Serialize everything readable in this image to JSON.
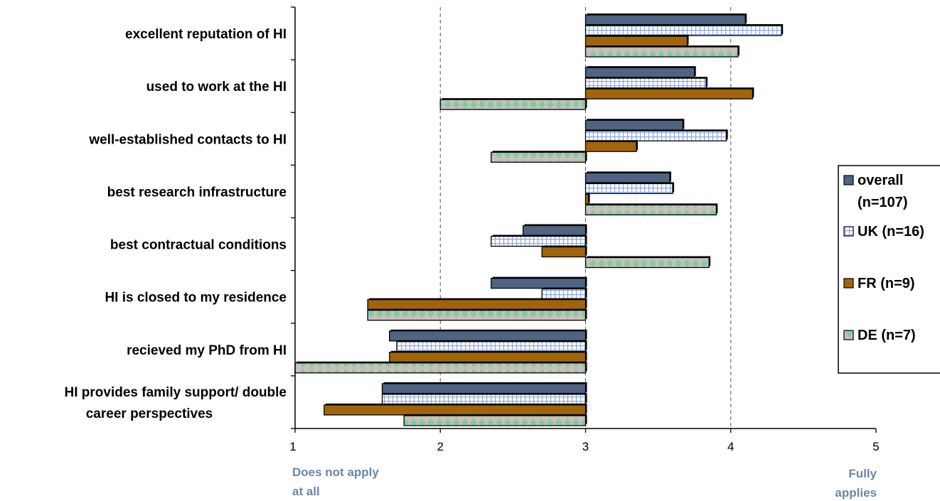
{
  "chart_data": {
    "type": "bar",
    "orientation": "horizontal",
    "categories": [
      "excellent reputation of HI",
      "used to work at the HI",
      "well-established contacts to HI",
      "best research infrastructure",
      "best contractual conditions",
      "HI is closed to my residence",
      "recieved my PhD from HI",
      "HI provides family support/ double career perspectives"
    ],
    "category_lines": [
      [
        "excellent reputation of HI"
      ],
      [
        "used to work at the HI"
      ],
      [
        "well-established contacts to HI"
      ],
      [
        "best research infrastructure"
      ],
      [
        "best contractual conditions"
      ],
      [
        "HI is closed to my residence"
      ],
      [
        "recieved my PhD from HI"
      ],
      [
        "HI provides family support/ double",
        "career perspectives"
      ]
    ],
    "baseline": 3,
    "xlim": [
      1,
      5
    ],
    "xticks": [
      "1",
      "2",
      "3",
      "4",
      "5"
    ],
    "x_grid": [
      2,
      3,
      4
    ],
    "scale_notes": {
      "low": [
        "Does not apply",
        "at all"
      ],
      "high": [
        "Fully",
        "applies"
      ]
    },
    "legend_position": "right",
    "series": [
      {
        "name": "overall",
        "legend_lines": [
          "overall",
          "(n=107)"
        ],
        "color": "#4f6482",
        "pattern": "solid",
        "values": [
          4.1,
          3.75,
          3.67,
          3.58,
          2.57,
          2.35,
          1.65,
          1.6
        ]
      },
      {
        "name": "UK",
        "legend_lines": [
          "UK (n=16)"
        ],
        "color": "#8ea8df",
        "pattern": "grid",
        "values": [
          4.35,
          3.83,
          3.97,
          3.6,
          2.35,
          2.7,
          1.7,
          1.6
        ]
      },
      {
        "name": "FR",
        "legend_lines": [
          "FR (n=9)"
        ],
        "color": "#a0650a",
        "pattern": "solid",
        "values": [
          3.7,
          4.15,
          3.35,
          3.02,
          2.7,
          1.5,
          1.65,
          1.2
        ]
      },
      {
        "name": "DE",
        "legend_lines": [
          "DE (n=7)"
        ],
        "color": "#8fbfae",
        "pattern": "diamond",
        "values": [
          4.05,
          2.0,
          2.35,
          3.9,
          3.85,
          1.5,
          1.0,
          1.75
        ]
      }
    ]
  }
}
